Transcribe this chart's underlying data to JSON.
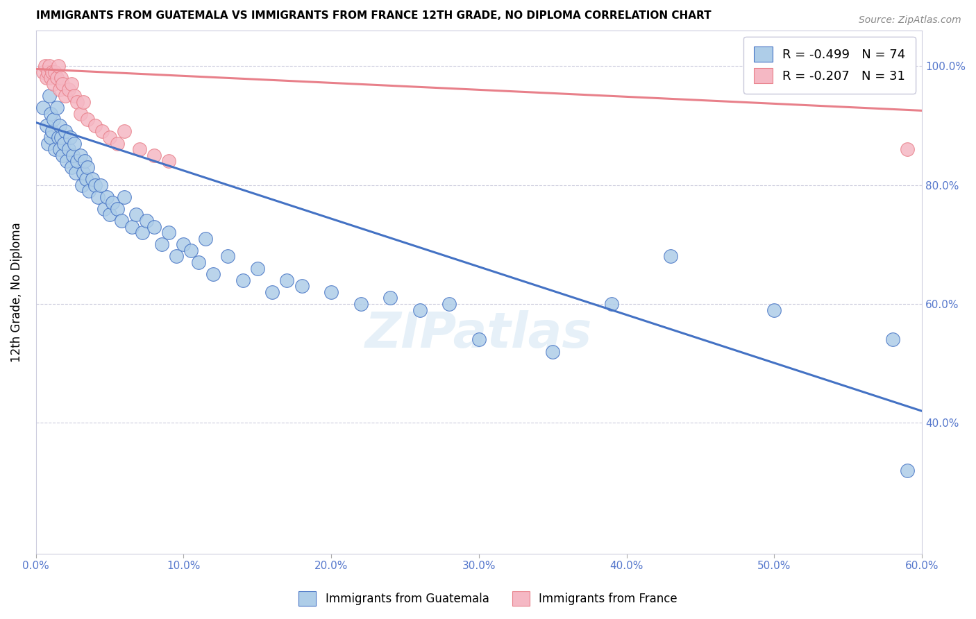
{
  "title": "IMMIGRANTS FROM GUATEMALA VS IMMIGRANTS FROM FRANCE 12TH GRADE, NO DIPLOMA CORRELATION CHART",
  "source": "Source: ZipAtlas.com",
  "ylabel": "12th Grade, No Diploma",
  "x_min": 0.0,
  "x_max": 0.6,
  "y_min": 0.18,
  "y_max": 1.06,
  "x_ticks": [
    0.0,
    0.1,
    0.2,
    0.3,
    0.4,
    0.5,
    0.6
  ],
  "y_ticks": [
    0.4,
    0.6,
    0.8,
    1.0
  ],
  "blue_R": -0.499,
  "blue_N": 74,
  "pink_R": -0.207,
  "pink_N": 31,
  "blue_color": "#aecde8",
  "pink_color": "#f5b8c4",
  "blue_line_color": "#4472c4",
  "pink_line_color": "#e8808a",
  "watermark": "ZIPatlas",
  "blue_scatter_x": [
    0.005,
    0.007,
    0.008,
    0.009,
    0.01,
    0.01,
    0.011,
    0.012,
    0.013,
    0.014,
    0.015,
    0.016,
    0.016,
    0.017,
    0.018,
    0.019,
    0.02,
    0.021,
    0.022,
    0.023,
    0.024,
    0.025,
    0.026,
    0.027,
    0.028,
    0.03,
    0.031,
    0.032,
    0.033,
    0.034,
    0.035,
    0.036,
    0.038,
    0.04,
    0.042,
    0.044,
    0.046,
    0.048,
    0.05,
    0.052,
    0.055,
    0.058,
    0.06,
    0.065,
    0.068,
    0.072,
    0.075,
    0.08,
    0.085,
    0.09,
    0.095,
    0.1,
    0.105,
    0.11,
    0.115,
    0.12,
    0.13,
    0.14,
    0.15,
    0.16,
    0.17,
    0.18,
    0.2,
    0.22,
    0.24,
    0.26,
    0.28,
    0.3,
    0.35,
    0.39,
    0.43,
    0.5,
    0.58,
    0.59
  ],
  "blue_scatter_y": [
    0.93,
    0.9,
    0.87,
    0.95,
    0.88,
    0.92,
    0.89,
    0.91,
    0.86,
    0.93,
    0.88,
    0.9,
    0.86,
    0.88,
    0.85,
    0.87,
    0.89,
    0.84,
    0.86,
    0.88,
    0.83,
    0.85,
    0.87,
    0.82,
    0.84,
    0.85,
    0.8,
    0.82,
    0.84,
    0.81,
    0.83,
    0.79,
    0.81,
    0.8,
    0.78,
    0.8,
    0.76,
    0.78,
    0.75,
    0.77,
    0.76,
    0.74,
    0.78,
    0.73,
    0.75,
    0.72,
    0.74,
    0.73,
    0.7,
    0.72,
    0.68,
    0.7,
    0.69,
    0.67,
    0.71,
    0.65,
    0.68,
    0.64,
    0.66,
    0.62,
    0.64,
    0.63,
    0.62,
    0.6,
    0.61,
    0.59,
    0.6,
    0.54,
    0.52,
    0.6,
    0.68,
    0.59,
    0.54,
    0.32
  ],
  "pink_scatter_x": [
    0.005,
    0.006,
    0.007,
    0.008,
    0.009,
    0.01,
    0.011,
    0.012,
    0.013,
    0.014,
    0.015,
    0.016,
    0.017,
    0.018,
    0.02,
    0.022,
    0.024,
    0.026,
    0.028,
    0.03,
    0.032,
    0.035,
    0.04,
    0.045,
    0.05,
    0.055,
    0.06,
    0.07,
    0.08,
    0.09,
    0.59
  ],
  "pink_scatter_y": [
    0.99,
    1.0,
    0.98,
    0.99,
    1.0,
    0.98,
    0.99,
    0.97,
    0.99,
    0.98,
    1.0,
    0.96,
    0.98,
    0.97,
    0.95,
    0.96,
    0.97,
    0.95,
    0.94,
    0.92,
    0.94,
    0.91,
    0.9,
    0.89,
    0.88,
    0.87,
    0.89,
    0.86,
    0.85,
    0.84,
    0.86
  ],
  "blue_trend_x": [
    0.0,
    0.6
  ],
  "blue_trend_y": [
    0.905,
    0.42
  ],
  "pink_trend_x": [
    0.0,
    0.6
  ],
  "pink_trend_y": [
    0.995,
    0.925
  ]
}
